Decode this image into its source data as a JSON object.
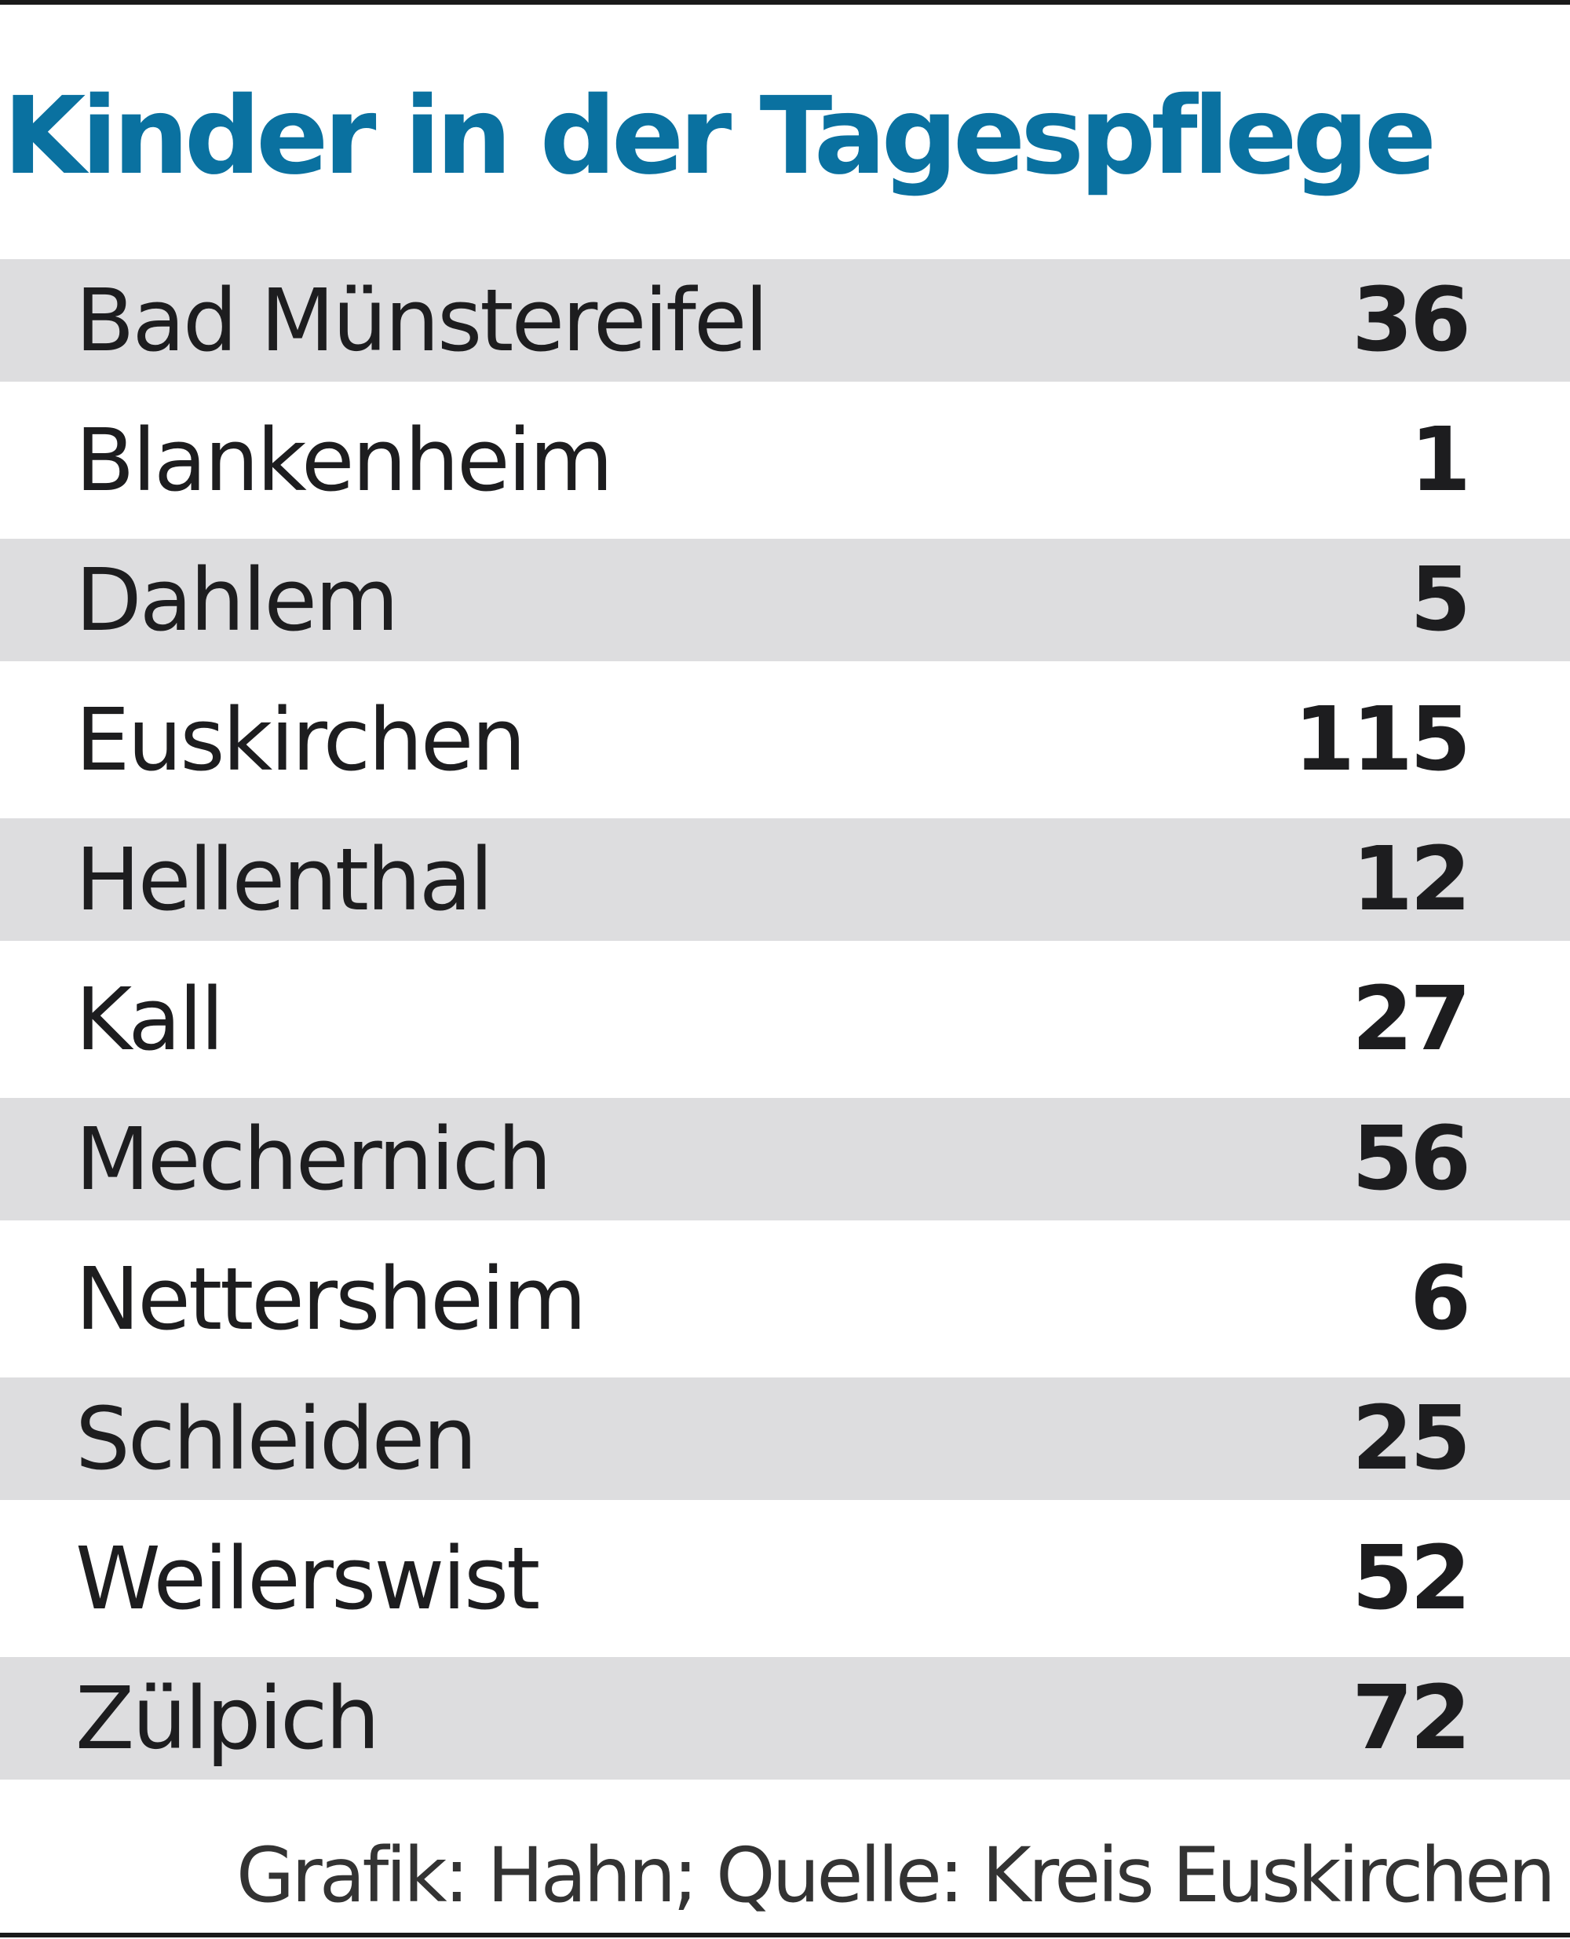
{
  "chart_data": {
    "type": "table",
    "title": "Kinder in der Tagespflege",
    "columns": [
      "",
      ""
    ],
    "rows": [
      {
        "name": "Bad Münstereifel",
        "value": 36
      },
      {
        "name": "Blankenheim",
        "value": 1
      },
      {
        "name": "Dahlem",
        "value": 5
      },
      {
        "name": "Euskirchen",
        "value": 115
      },
      {
        "name": "Hellenthal",
        "value": 12
      },
      {
        "name": "Kall",
        "value": 27
      },
      {
        "name": "Mechernich",
        "value": 56
      },
      {
        "name": "Nettersheim",
        "value": 6
      },
      {
        "name": "Schleiden",
        "value": 25
      },
      {
        "name": "Weilerswist",
        "value": 52
      },
      {
        "name": "Zülpich",
        "value": 72
      }
    ],
    "source": "Grafik: Hahn; Quelle: Kreis Euskirchen"
  },
  "colors": {
    "title": "#0a71a0",
    "stripe": "#dddddf",
    "text": "#1d1d1f"
  }
}
